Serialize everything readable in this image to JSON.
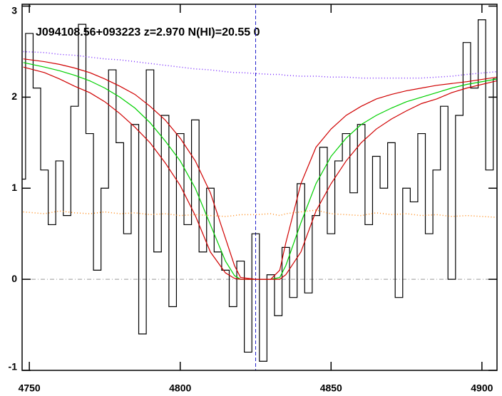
{
  "chart_data": {
    "type": "line",
    "annotation": "J094108.56+093223 z=2.970 N(HI)=20.55 0",
    "xlim": [
      4747.6,
      4905
    ],
    "xticks": [
      4750,
      4800,
      4850,
      4900
    ],
    "ylim": [
      -1,
      3.02
    ],
    "yticks": [
      -1,
      0,
      1,
      2,
      3
    ],
    "vline": 4825,
    "hline": 0,
    "series": [
      {
        "style": "step",
        "color": "#000000",
        "x": [
          4747.5,
          4750,
          4752.5,
          4755,
          4757.5,
          4760,
          4762.5,
          4765,
          4767.5,
          4770,
          4772.5,
          4775,
          4777.5,
          4780,
          4782.5,
          4785,
          4787.5,
          4790,
          4792.5,
          4795,
          4797.5,
          4800,
          4802.5,
          4805,
          4807.5,
          4810,
          4812.5,
          4815,
          4817.5,
          4820,
          4822.5,
          4825,
          4827.5,
          4830,
          4832.5,
          4835,
          4837.5,
          4840,
          4842.5,
          4845,
          4847.5,
          4850,
          4852.5,
          4855,
          4857.5,
          4860,
          4862.5,
          4865,
          4867.5,
          4870,
          4872.5,
          4875,
          4877.5,
          4880,
          4882.5,
          4885,
          4887.5,
          4890,
          4892.5,
          4895,
          4897.5,
          4900,
          4902.5,
          4905
        ],
        "values": [
          1.1,
          2.7,
          2.1,
          1.2,
          0.6,
          1.3,
          0.7,
          1.9,
          2.8,
          1.6,
          0.1,
          1.0,
          2.3,
          1.5,
          0.5,
          1.7,
          -0.6,
          2.3,
          0.3,
          1.8,
          -0.3,
          1.6,
          0.6,
          1.75,
          0.3,
          1.0,
          0.3,
          0.1,
          -0.3,
          0.2,
          -0.8,
          0.5,
          -0.9,
          0.05,
          -0.4,
          0.35,
          -0.2,
          1.05,
          -0.15,
          0.7,
          1.45,
          0.5,
          1.3,
          1.6,
          0.95,
          1.7,
          0.6,
          1.35,
          1.0,
          1.5,
          -0.2,
          1.0,
          0.85,
          1.6,
          0.5,
          1.2,
          1.9,
          0.0,
          1.8,
          2.6,
          2.1,
          2.85,
          1.2,
          2.2
        ]
      },
      {
        "style": "solid",
        "color": "#00d000",
        "x": [
          4748,
          4755,
          4760,
          4765,
          4770,
          4775,
          4780,
          4785,
          4790,
          4795,
          4800,
          4805,
          4810,
          4815,
          4818,
          4820,
          4825,
          4830,
          4833,
          4835,
          4840,
          4845,
          4850,
          4855,
          4860,
          4865,
          4870,
          4875,
          4880,
          4885,
          4890,
          4895,
          4905
        ],
        "values": [
          2.38,
          2.33,
          2.29,
          2.24,
          2.18,
          2.1,
          2.0,
          1.88,
          1.72,
          1.52,
          1.3,
          1.0,
          0.6,
          0.2,
          0.04,
          0.0,
          0.0,
          0.0,
          0.02,
          0.15,
          0.62,
          1.05,
          1.35,
          1.55,
          1.7,
          1.8,
          1.88,
          1.95,
          2.0,
          2.05,
          2.1,
          2.14,
          2.2
        ]
      },
      {
        "style": "solid",
        "color": "#d00000",
        "x": [
          4748,
          4755,
          4760,
          4765,
          4770,
          4775,
          4780,
          4785,
          4790,
          4795,
          4800,
          4805,
          4810,
          4815,
          4818,
          4820,
          4825,
          4830,
          4833,
          4835,
          4840,
          4845,
          4850,
          4855,
          4860,
          4865,
          4870,
          4875,
          4880,
          4885,
          4890,
          4895,
          4905
        ],
        "values": [
          2.42,
          2.39,
          2.36,
          2.32,
          2.27,
          2.2,
          2.12,
          2.03,
          1.9,
          1.75,
          1.55,
          1.3,
          0.95,
          0.45,
          0.15,
          0.02,
          0.0,
          0.0,
          0.1,
          0.4,
          1.05,
          1.45,
          1.65,
          1.8,
          1.9,
          1.98,
          2.03,
          2.07,
          2.1,
          2.13,
          2.15,
          2.17,
          2.22
        ]
      },
      {
        "style": "solid",
        "color": "#d00000",
        "x": [
          4748,
          4755,
          4760,
          4765,
          4770,
          4775,
          4780,
          4785,
          4790,
          4795,
          4800,
          4805,
          4810,
          4815,
          4818,
          4820,
          4825,
          4830,
          4833,
          4835,
          4840,
          4845,
          4850,
          4855,
          4860,
          4865,
          4870,
          4875,
          4880,
          4885,
          4890,
          4895,
          4905
        ],
        "values": [
          2.33,
          2.27,
          2.2,
          2.12,
          2.05,
          1.95,
          1.82,
          1.67,
          1.5,
          1.28,
          1.03,
          0.7,
          0.3,
          0.07,
          0.01,
          0.0,
          0.0,
          0.0,
          0.0,
          0.05,
          0.3,
          0.75,
          1.05,
          1.3,
          1.5,
          1.65,
          1.76,
          1.85,
          1.93,
          1.98,
          2.05,
          2.1,
          2.18
        ]
      },
      {
        "style": "dotted",
        "color": "#7a2cff",
        "x": [
          4748,
          4755,
          4760,
          4765,
          4770,
          4775,
          4780,
          4785,
          4790,
          4795,
          4800,
          4805,
          4810,
          4815,
          4818,
          4820,
          4825,
          4830,
          4833,
          4835,
          4840,
          4845,
          4850,
          4855,
          4860,
          4865,
          4870,
          4875,
          4880,
          4885,
          4890,
          4895,
          4905
        ],
        "values": [
          2.5,
          2.49,
          2.47,
          2.46,
          2.44,
          2.42,
          2.41,
          2.39,
          2.37,
          2.35,
          2.33,
          2.31,
          2.3,
          2.28,
          2.27,
          2.27,
          2.26,
          2.25,
          2.25,
          2.24,
          2.23,
          2.23,
          2.22,
          2.22,
          2.21,
          2.21,
          2.21,
          2.21,
          2.21,
          2.22,
          2.23,
          2.25,
          2.28
        ]
      },
      {
        "style": "dotted",
        "color": "#ff8c1a",
        "x": [
          4748,
          4755,
          4760,
          4765,
          4770,
          4775,
          4780,
          4785,
          4790,
          4795,
          4800,
          4805,
          4810,
          4815,
          4818,
          4820,
          4825,
          4830,
          4833,
          4835,
          4840,
          4845,
          4850,
          4855,
          4860,
          4865,
          4870,
          4875,
          4880,
          4885,
          4890,
          4895,
          4905
        ],
        "values": [
          0.74,
          0.72,
          0.75,
          0.73,
          0.72,
          0.74,
          0.72,
          0.73,
          0.71,
          0.72,
          0.7,
          0.71,
          0.7,
          0.69,
          0.7,
          0.71,
          0.71,
          0.72,
          0.7,
          0.72,
          0.74,
          0.76,
          0.72,
          0.71,
          0.7,
          0.73,
          0.71,
          0.72,
          0.7,
          0.71,
          0.69,
          0.7,
          0.68
        ]
      }
    ]
  }
}
